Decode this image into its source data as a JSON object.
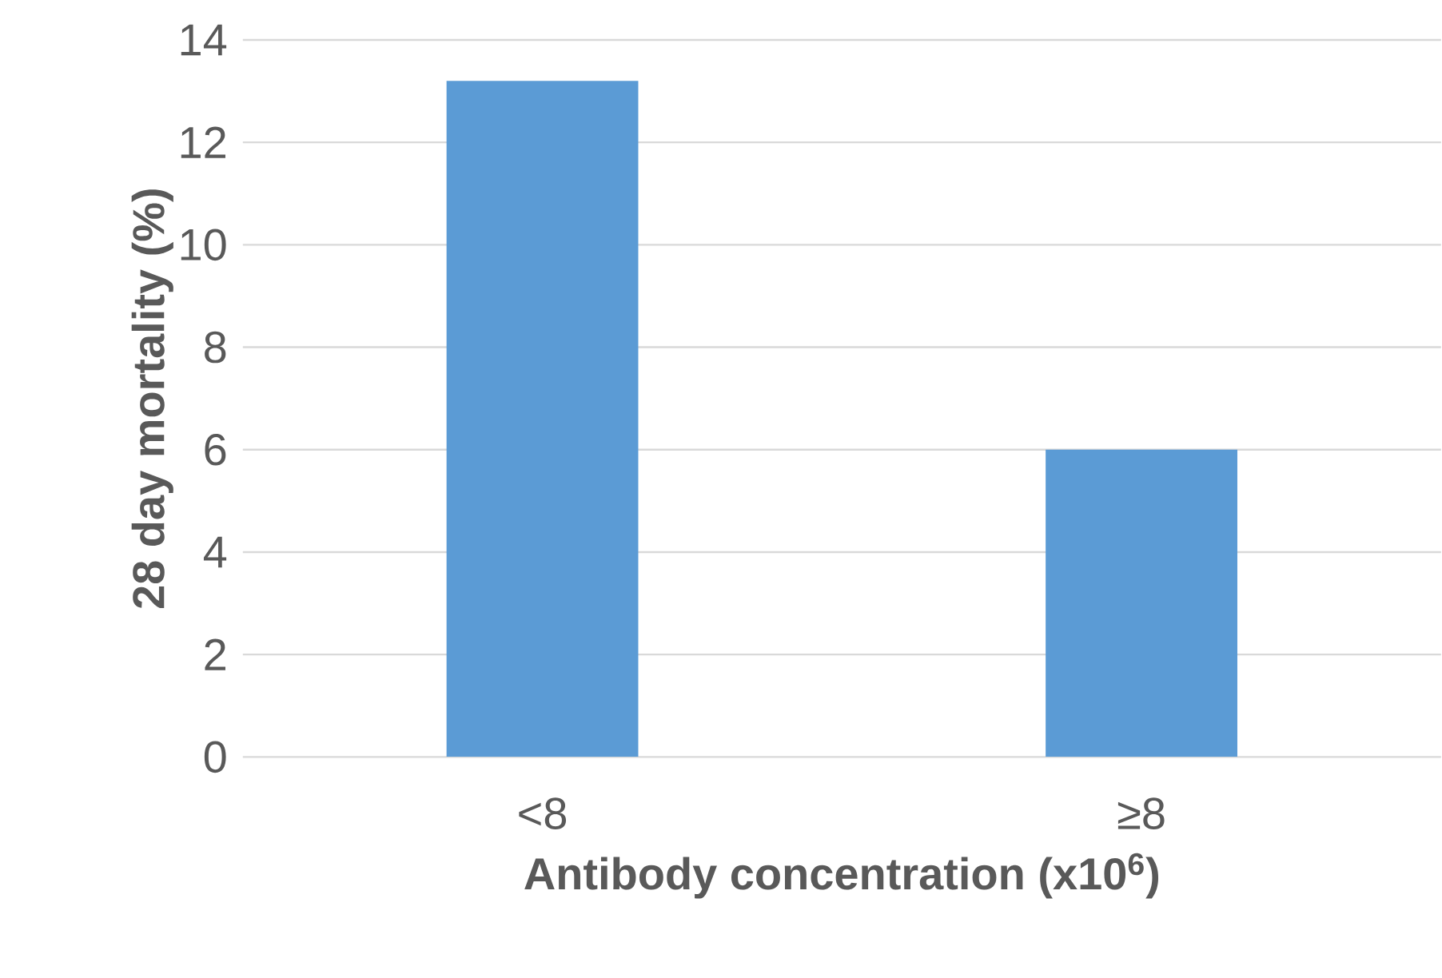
{
  "chart_data": {
    "type": "bar",
    "xlabel": "Antibody concentration (x10$^{6}$)",
    "ylabel": "28 day mortality (%)",
    "categories": [
      "<8",
      "≥8"
    ],
    "values": [
      13.2,
      6.0
    ],
    "color": "#5b9bd5",
    "ylim": [
      0,
      14
    ],
    "yticks": [
      0,
      2,
      4,
      6,
      8,
      10,
      12,
      14
    ],
    "grid": "y"
  }
}
